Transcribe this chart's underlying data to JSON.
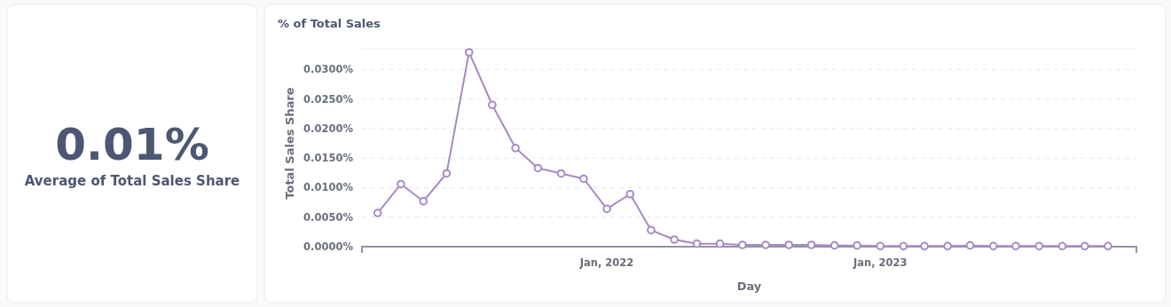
{
  "chart_data": [
    {
      "type": "other",
      "title": "0.01%",
      "subtitle": "Average of Total Sales Share"
    },
    {
      "type": "line",
      "title": "% of Total Sales",
      "xlabel": "Day",
      "ylabel": "Total Sales Share",
      "x": [
        "2021-03",
        "2021-04",
        "2021-05",
        "2021-06",
        "2021-07",
        "2021-08",
        "2021-09",
        "2021-10",
        "2021-11",
        "2021-12",
        "2022-01",
        "2022-02",
        "2022-03",
        "2022-04",
        "2022-05",
        "2022-06",
        "2022-07",
        "2022-08",
        "2022-09",
        "2022-10",
        "2022-11",
        "2022-12",
        "2023-01",
        "2023-02",
        "2023-03",
        "2023-04",
        "2023-05",
        "2023-06",
        "2023-07",
        "2023-08",
        "2023-09",
        "2023-10",
        "2023-11"
      ],
      "series": [
        {
          "color": "#a989c5",
          "values": [
            0.0057,
            0.0106,
            0.0077,
            0.0124,
            0.0329,
            0.024,
            0.0167,
            0.0133,
            0.0124,
            0.0115,
            0.0064,
            0.0089,
            0.0028,
            0.0012,
            0.0005,
            0.0005,
            0.0003,
            0.0003,
            0.0003,
            0.0003,
            0.0002,
            0.0002,
            0.0001,
            0.0001,
            0.0001,
            0.0001,
            0.0002,
            0.0001,
            0.0001,
            0.0001,
            0.0001,
            0.0001,
            0.0001
          ]
        }
      ],
      "xlim": [
        "2021-02-08",
        "2023-12-09"
      ],
      "xticks": [
        {
          "value": "2022-01",
          "label": "Jan, 2022"
        },
        {
          "value": "2023-01",
          "label": "Jan, 2023"
        }
      ],
      "yticks": [
        {
          "value": 0,
          "label": "0.0000%"
        },
        {
          "value": 0.005,
          "label": "0.0050%"
        },
        {
          "value": 0.01,
          "label": "0.0100%"
        },
        {
          "value": 0.015,
          "label": "0.0150%"
        },
        {
          "value": 0.02,
          "label": "0.0200%"
        },
        {
          "value": 0.025,
          "label": "0.0250%"
        },
        {
          "value": 0.03,
          "label": "0.0300%"
        }
      ],
      "ylim": [
        0,
        0.0335
      ],
      "grid": "y",
      "marker": "circle"
    }
  ]
}
